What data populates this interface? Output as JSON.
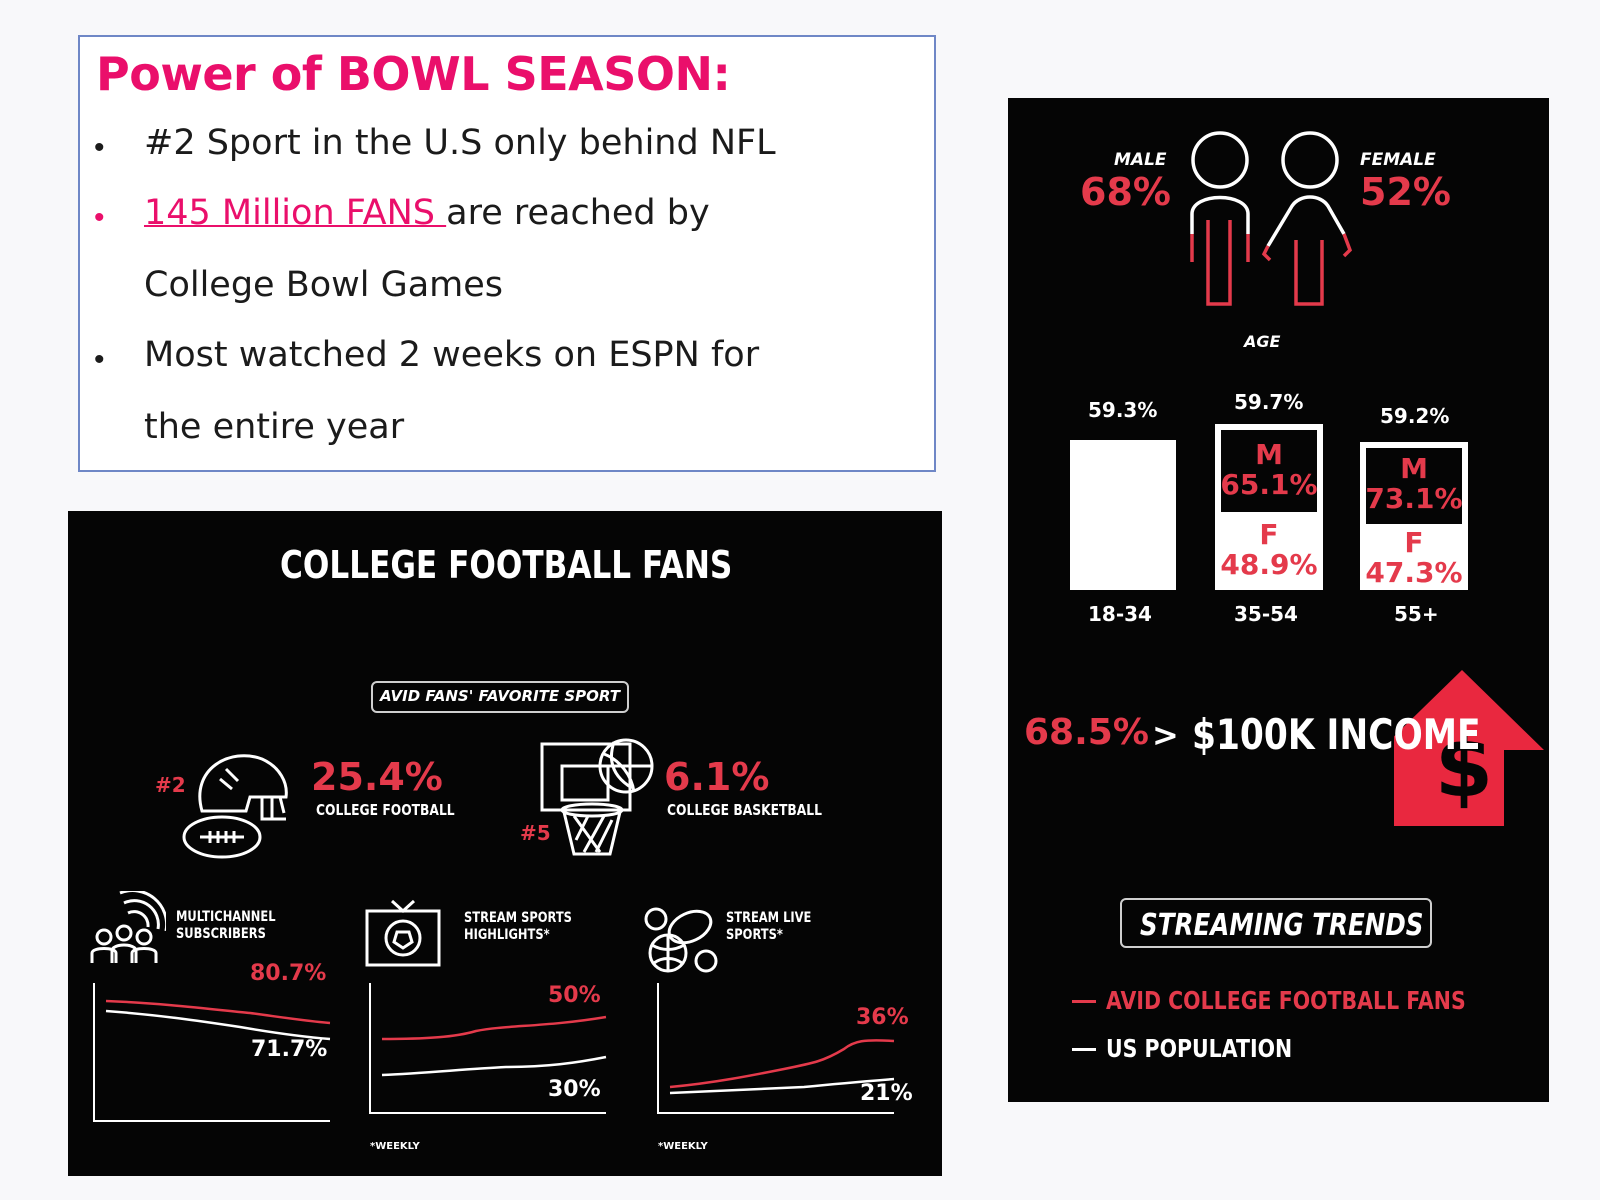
{
  "textbox": {
    "title": "Power of BOWL SEASON:",
    "bullet1": "#2 Sport in the U.S only behind NFL",
    "bullet2_highlight": "145 Million FANS ",
    "bullet2_rest": "are reached by",
    "bullet2_cont": "College Bowl Games",
    "bullet3": "Most watched 2 weeks on ESPN for",
    "bullet3_cont": "the entire year",
    "bullet_glyph": "•"
  },
  "cff": {
    "title": "COLLEGE FOOTBALL FANS",
    "pill": "AVID FANS' FAVORITE SPORT",
    "football": {
      "rank": "#2",
      "pct": "25.4%",
      "label": "COLLEGE FOOTBALL"
    },
    "basketball": {
      "rank": "#5",
      "pct": "6.1%",
      "label": "COLLEGE BASKETBALL"
    },
    "minicharts": [
      {
        "label1": "MULTICHANNEL",
        "label2": "SUBSCRIBERS",
        "avid": "80.7%",
        "us": "71.7%",
        "note": ""
      },
      {
        "label1": "STREAM SPORTS",
        "label2": "HIGHLIGHTS*",
        "avid": "50%",
        "us": "30%",
        "note": "*WEEKLY"
      },
      {
        "label1": "STREAM LIVE",
        "label2": "SPORTS*",
        "avid": "36%",
        "us": "21%",
        "note": "*WEEKLY"
      }
    ]
  },
  "demo": {
    "male_label": "MALE",
    "male_pct": "68%",
    "female_label": "FEMALE",
    "female_pct": "52%",
    "age_label": "AGE",
    "age_groups": [
      {
        "range": "18-34",
        "total": "59.3%",
        "m": "",
        "m_pct": "",
        "f": "",
        "f_pct": ""
      },
      {
        "range": "35-54",
        "total": "59.7%",
        "m": "M",
        "m_pct": "65.1%",
        "f": "F",
        "f_pct": "48.9%"
      },
      {
        "range": "55+",
        "total": "59.2%",
        "m": "M",
        "m_pct": "73.1%",
        "f": "F",
        "f_pct": "47.3%"
      }
    ],
    "income_pct": "68.5%",
    "income_gt": ">",
    "income_label": "$100K INCOME",
    "dollar": "$",
    "streaming": "STREAMING TRENDS",
    "legend_avid": "AVID COLLEGE FOOTBALL FANS",
    "legend_us": "US POPULATION"
  },
  "colors": {
    "pink": "#ea0f6b",
    "red": "#e43a4b",
    "black": "#050505"
  }
}
